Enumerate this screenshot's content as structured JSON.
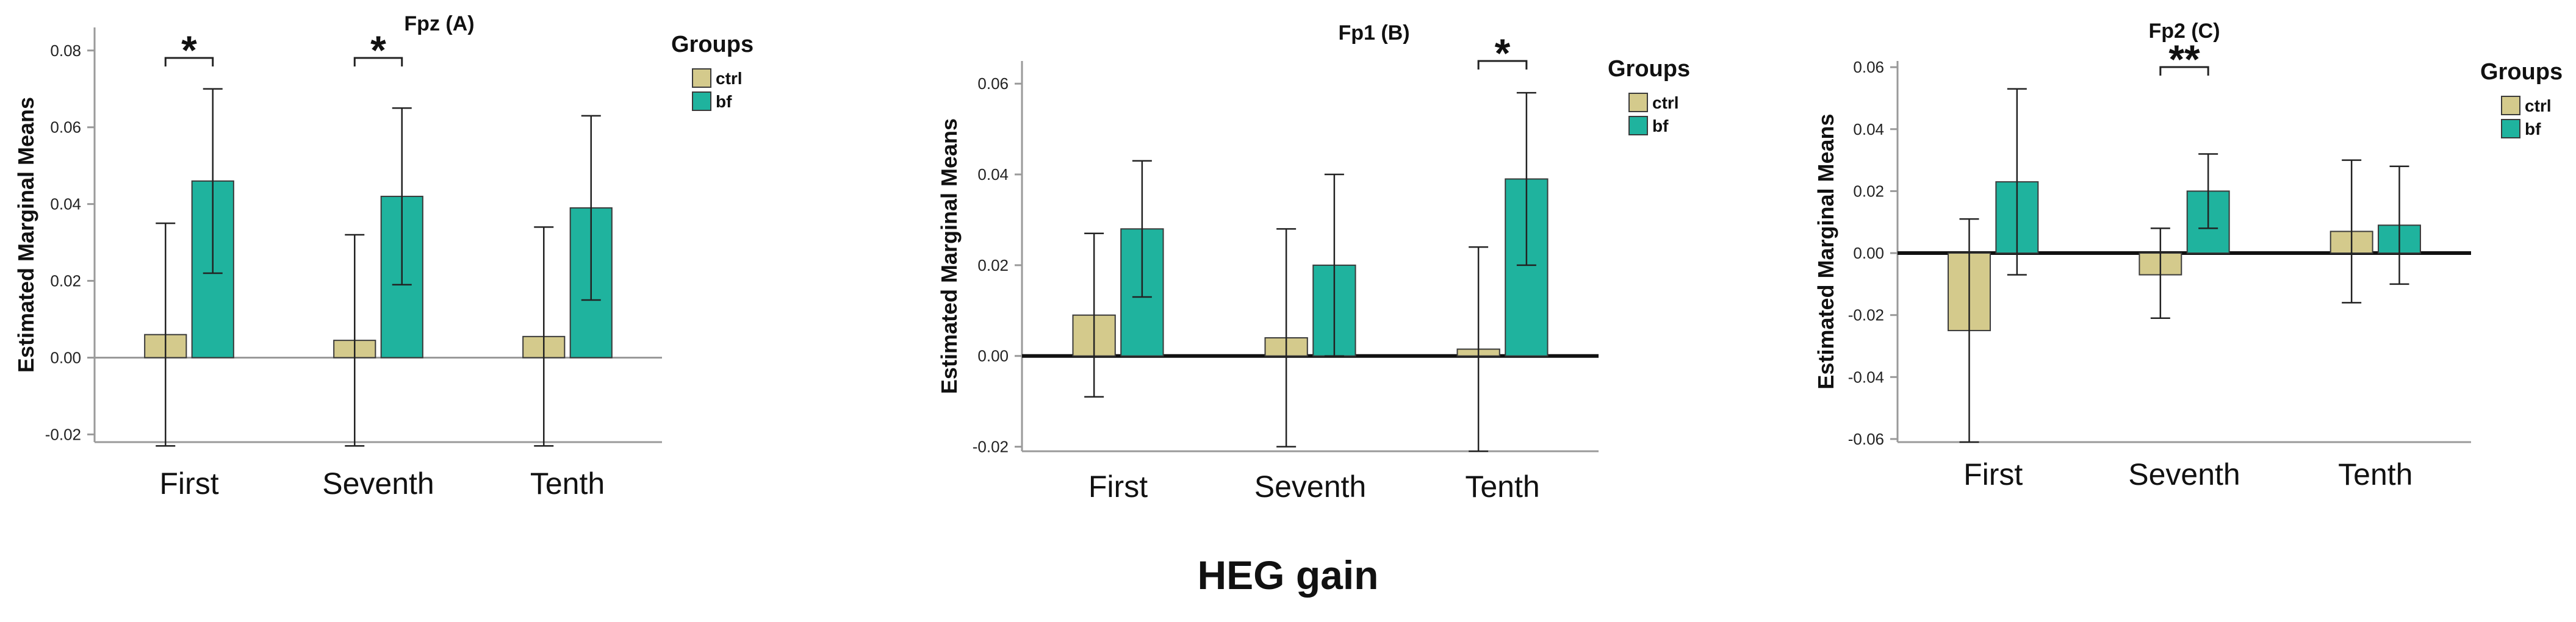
{
  "figure": {
    "xlabel": "HEG gain",
    "colors": {
      "ctrl": "#D4CA8C",
      "bf": "#1FB39E",
      "edge": "#3a3a3a",
      "error": "#222222"
    }
  },
  "chart_data": [
    {
      "type": "bar",
      "title": "Fpz (A)",
      "ylabel": "Estimated Marginal Means",
      "categories": [
        "First",
        "Seventh",
        "Tenth"
      ],
      "ylim": [
        -0.022,
        0.086
      ],
      "yticks": [
        "-0.02",
        "0.00",
        "0.02",
        "0.04",
        "0.06",
        "0.08"
      ],
      "legend_title": "Groups",
      "legend": "right",
      "grid": false,
      "series": [
        {
          "name": "ctrl",
          "values": [
            0.006,
            0.0045,
            0.0055
          ],
          "err_low": [
            -0.023,
            -0.023,
            -0.023
          ],
          "err_high": [
            0.035,
            0.032,
            0.034
          ]
        },
        {
          "name": "bf",
          "values": [
            0.046,
            0.042,
            0.039
          ],
          "err_low": [
            0.022,
            0.019,
            0.015
          ],
          "err_high": [
            0.07,
            0.065,
            0.063
          ]
        }
      ],
      "annotations": [
        {
          "text": "*",
          "category": 0
        },
        {
          "text": "*",
          "category": 1
        }
      ]
    },
    {
      "type": "bar",
      "title": "Fp1 (B)",
      "ylabel": "Estimated Marginal Means",
      "categories": [
        "First",
        "Seventh",
        "Tenth"
      ],
      "ylim": [
        -0.021,
        0.065
      ],
      "yticks": [
        "-0.02",
        "0.00",
        "0.02",
        "0.04",
        "0.06"
      ],
      "legend_title": "Groups",
      "legend": "right",
      "grid": false,
      "series": [
        {
          "name": "ctrl",
          "values": [
            0.009,
            0.004,
            0.0015
          ],
          "err_low": [
            -0.009,
            -0.02,
            -0.021
          ],
          "err_high": [
            0.027,
            0.028,
            0.024
          ]
        },
        {
          "name": "bf",
          "values": [
            0.028,
            0.02,
            0.039
          ],
          "err_low": [
            0.013,
            0.0,
            0.02
          ],
          "err_high": [
            0.043,
            0.04,
            0.058
          ]
        }
      ],
      "annotations": [
        {
          "text": "*",
          "category": 2
        }
      ]
    },
    {
      "type": "bar",
      "title": "Fp2 (C)",
      "ylabel": "Estimated Marginal Means",
      "categories": [
        "First",
        "Seventh",
        "Tenth"
      ],
      "ylim": [
        -0.061,
        0.062
      ],
      "yticks": [
        "-0.06",
        "-0.04",
        "-0.02",
        "0.00",
        "0.02",
        "0.04",
        "0.06"
      ],
      "legend_title": "Groups",
      "legend": "right",
      "grid": false,
      "series": [
        {
          "name": "ctrl",
          "values": [
            -0.025,
            -0.007,
            0.007
          ],
          "err_low": [
            -0.061,
            -0.021,
            -0.016
          ],
          "err_high": [
            0.011,
            0.008,
            0.03
          ]
        },
        {
          "name": "bf",
          "values": [
            0.023,
            0.02,
            0.009
          ],
          "err_low": [
            -0.007,
            0.008,
            -0.01
          ],
          "err_high": [
            0.053,
            0.032,
            0.028
          ]
        }
      ],
      "annotations": [
        {
          "text": "**",
          "category": 1
        }
      ]
    }
  ]
}
